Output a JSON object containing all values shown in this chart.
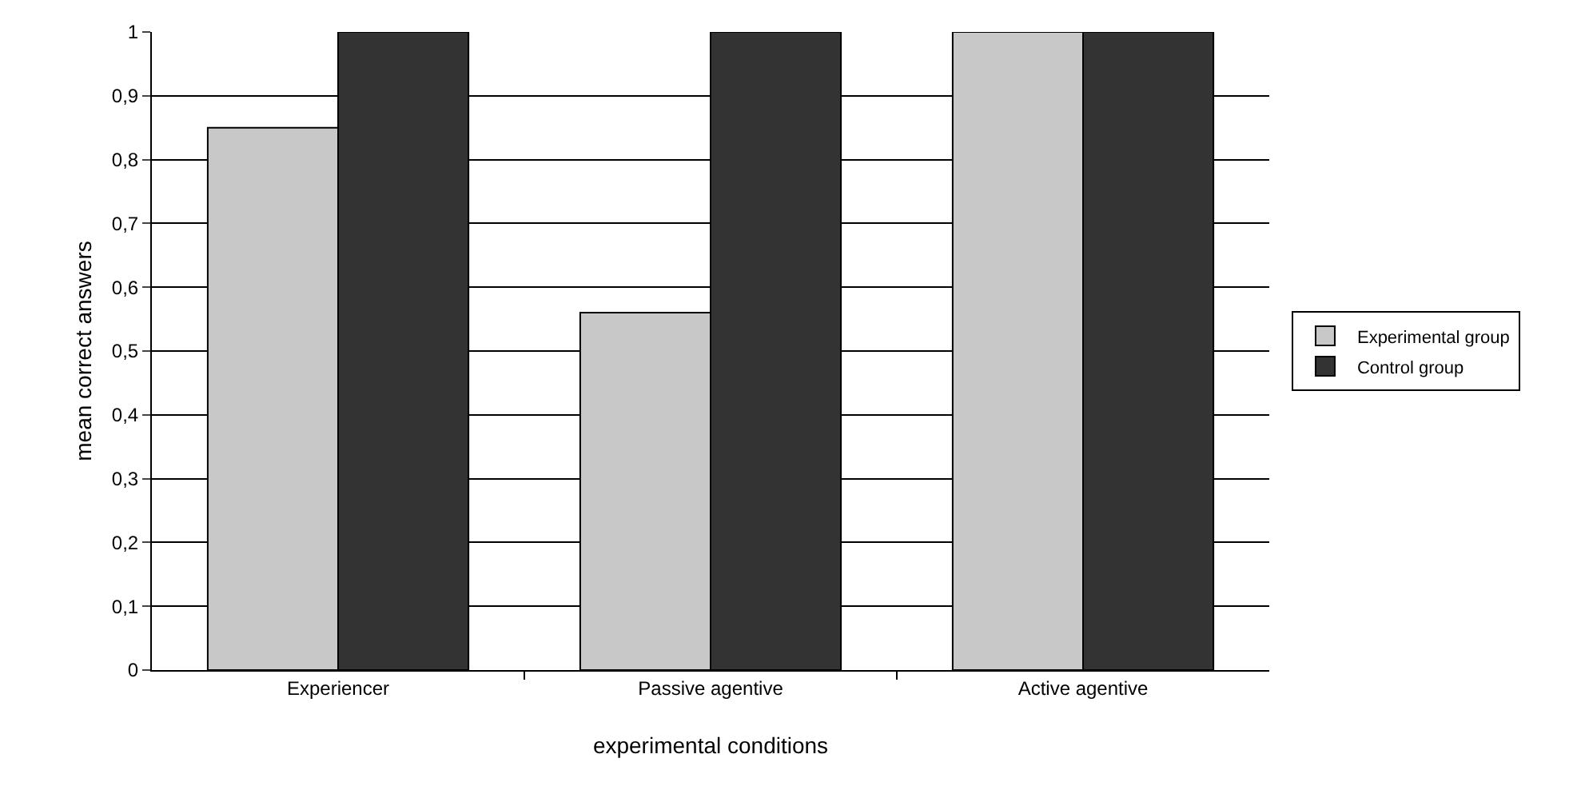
{
  "chart_data": {
    "type": "bar",
    "xlabel": "experimental conditions",
    "ylabel": "mean correct answers",
    "categories": [
      "Experiencer",
      "Passive agentive",
      "Active agentive"
    ],
    "series": [
      {
        "name": "Experimental group",
        "color": "#c8c8c8",
        "values": [
          0.85,
          0.56,
          1
        ]
      },
      {
        "name": "Control group",
        "color": "#333333",
        "values": [
          1,
          1,
          1
        ]
      }
    ],
    "ylim": [
      0,
      1
    ],
    "yticks": [
      0,
      {
        "value": 0.1,
        "label": "0,1"
      },
      {
        "value": 0.2,
        "label": "0,2"
      },
      {
        "value": 0.3,
        "label": "0,3"
      },
      {
        "value": 0.4,
        "label": "0,4"
      },
      {
        "value": 0.5,
        "label": "0,5"
      },
      {
        "value": 0.6,
        "label": "0,6"
      },
      {
        "value": 0.7,
        "label": "0,7"
      },
      {
        "value": 0.8,
        "label": "0,8"
      },
      {
        "value": 0.9,
        "label": "0,9"
      },
      1
    ],
    "grid": "y",
    "legend": "right"
  }
}
